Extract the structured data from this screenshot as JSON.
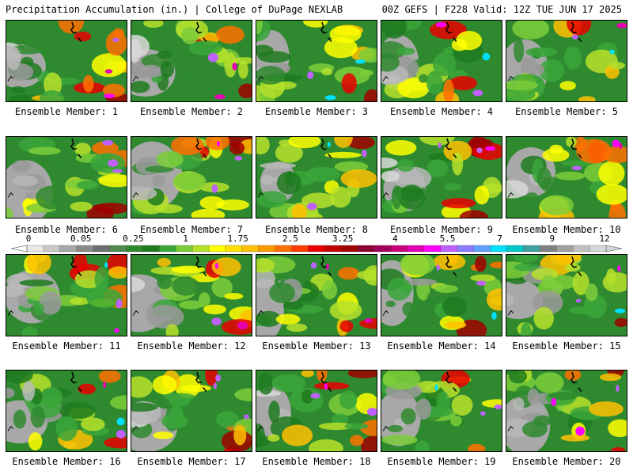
{
  "header": {
    "left_title": "Precipitation Accumulation (in.) | College of DuPage NEXLAB",
    "right_title": "00Z GEFS | F228 Valid: 12Z TUE JUN 17 2025"
  },
  "panels": [
    {
      "label": "Ensemble Member: 1"
    },
    {
      "label": "Ensemble Member: 2"
    },
    {
      "label": "Ensemble Member: 3"
    },
    {
      "label": "Ensemble Member: 4"
    },
    {
      "label": "Ensemble Member: 5"
    },
    {
      "label": "Ensemble Member: 6"
    },
    {
      "label": "Ensemble Member: 7"
    },
    {
      "label": "Ensemble Member: 8"
    },
    {
      "label": "Ensemble Member: 9"
    },
    {
      "label": "Ensemble Member: 10"
    },
    {
      "label": "Ensemble Member: 11"
    },
    {
      "label": "Ensemble Member: 12"
    },
    {
      "label": "Ensemble Member: 13"
    },
    {
      "label": "Ensemble Member: 14"
    },
    {
      "label": "Ensemble Member: 15"
    },
    {
      "label": "Ensemble Member: 16"
    },
    {
      "label": "Ensemble Member: 17"
    },
    {
      "label": "Ensemble Member: 18"
    },
    {
      "label": "Ensemble Member: 19"
    },
    {
      "label": "Ensemble Member: 20"
    }
  ],
  "colorbar": {
    "tick_labels": [
      "0",
      "0.05",
      "0.25",
      "1",
      "1.75",
      "2.5",
      "3.25",
      "4",
      "5.5",
      "7",
      "9",
      "12"
    ],
    "colors": [
      "#e8e8e8",
      "#c8c8c8",
      "#a8a8a8",
      "#8a8a8a",
      "#6e6e6e",
      "#4f8a4f",
      "#2f8a2f",
      "#1f7a1f",
      "#3aa63a",
      "#7ccc3a",
      "#b6e02a",
      "#ffff00",
      "#ffe000",
      "#ffc000",
      "#ff9a00",
      "#ff7000",
      "#ff3c00",
      "#e80000",
      "#c00000",
      "#a00000",
      "#8a0030",
      "#a0005a",
      "#c8007a",
      "#e600b4",
      "#ff00ff",
      "#c060ff",
      "#8a7cff",
      "#5fa0ff",
      "#00e0ff",
      "#00c8c8",
      "#40a0a0",
      "#808080",
      "#a0a0a0",
      "#c0c0c0",
      "#d8d8d8"
    ]
  }
}
